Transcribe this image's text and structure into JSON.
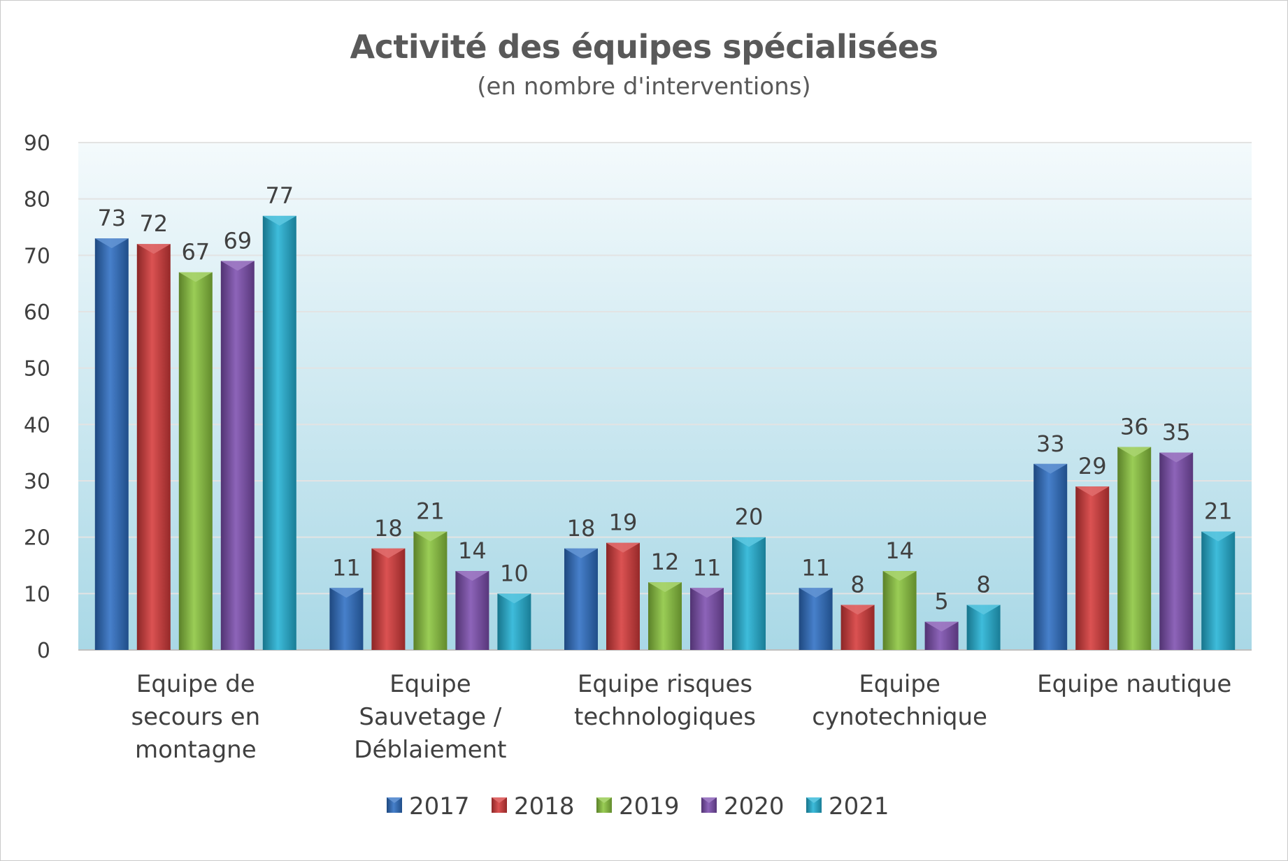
{
  "chart_data": {
    "type": "bar",
    "title": "Activité des équipes spécialisées",
    "subtitle": "(en nombre d'interventions)",
    "categories": [
      [
        "Equipe de",
        "secours en",
        "montagne"
      ],
      [
        "Equipe",
        "Sauvetage /",
        "Déblaiement"
      ],
      [
        "Equipe risques",
        "technologiques"
      ],
      [
        "Equipe",
        "cynotechnique"
      ],
      [
        "Equipe nautique"
      ]
    ],
    "series": [
      {
        "name": "2017",
        "color": "#2e6fc4",
        "values": [
          73,
          11,
          18,
          11,
          33
        ]
      },
      {
        "name": "2018",
        "color": "#d63a3a",
        "values": [
          72,
          18,
          19,
          8,
          29
        ]
      },
      {
        "name": "2019",
        "color": "#8cc63f",
        "values": [
          67,
          21,
          12,
          14,
          36
        ]
      },
      {
        "name": "2020",
        "color": "#7d4fb0",
        "values": [
          69,
          14,
          11,
          5,
          35
        ]
      },
      {
        "name": "2021",
        "color": "#24b3d6",
        "values": [
          77,
          10,
          20,
          8,
          21
        ]
      }
    ],
    "ylim": [
      0,
      90
    ],
    "yticks": [
      "0",
      "10",
      "20",
      "30",
      "40",
      "50",
      "60",
      "70",
      "80",
      "90"
    ],
    "grid": true,
    "legend_position": "bottom",
    "data_labels": true
  }
}
